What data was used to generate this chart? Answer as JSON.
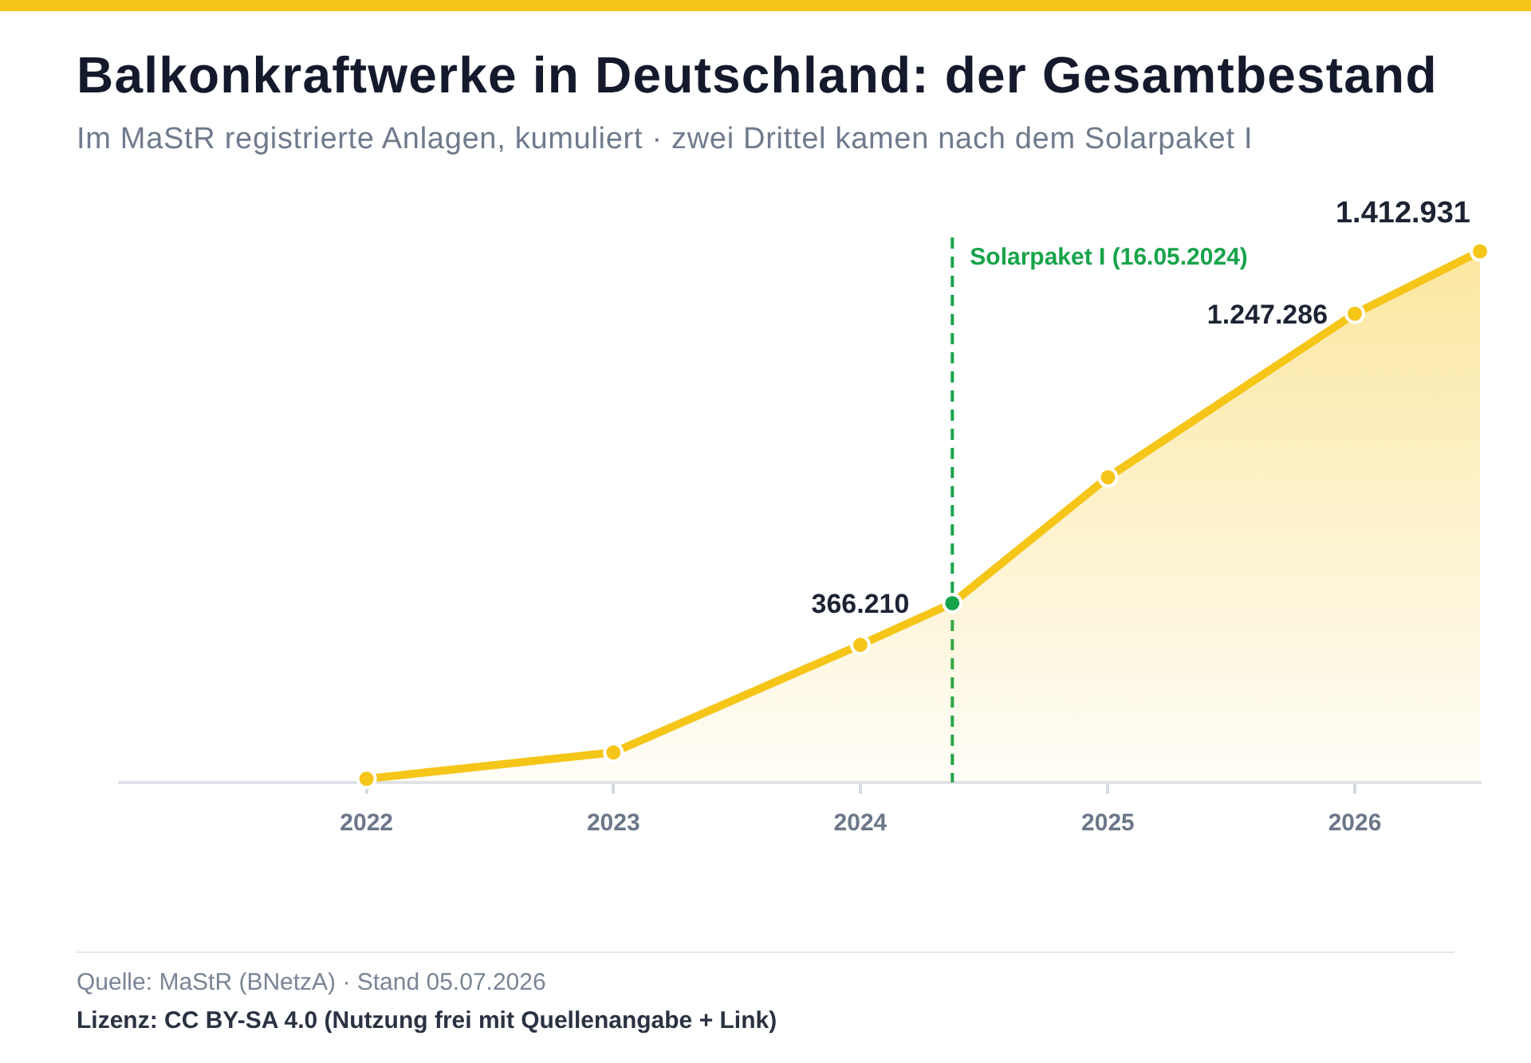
{
  "chart_data": {
    "type": "area",
    "title": "Balkonkraftwerke in Deutschland: der Gesamtbestand",
    "subtitle": "Im MaStR registrierte Anlagen, kumuliert · zwei Drittel kamen nach dem Solarpaket I",
    "x": [
      "2022-01-01",
      "2023-01-01",
      "2024-01-01",
      "2024-05-16",
      "2025-01-01",
      "2026-01-01",
      "2026-07-05"
    ],
    "series": [
      {
        "color": "#f5c518",
        "colors": [
          "#f5c518",
          "#f5c518",
          "#f5c518",
          "#17a34a",
          "#f5c518",
          "#f5c518",
          "#f5c518"
        ],
        "values": [
          10000,
          80000,
          366210,
          477000,
          812000,
          1247286,
          1412931
        ],
        "value_labels": [
          null,
          null,
          "366.210",
          null,
          null,
          "1.247.286",
          "1.412.931"
        ]
      }
    ],
    "xlim": [
      "2021-01-01",
      "2026-07-05"
    ],
    "xticks": [
      "2022",
      "2023",
      "2024",
      "2025",
      "2026"
    ],
    "ylim": [
      0,
      1450000
    ],
    "tick_labels": "x",
    "grid": false,
    "legend": false,
    "marker": "circle",
    "line_style": "solid",
    "ref_lines": [
      {
        "axis": "x",
        "value": "2024-05-16",
        "label": "Solarpaket I (16.05.2024)",
        "color": "#17a34a",
        "line_style": "dashed"
      }
    ],
    "annotations": [
      "Quelle: MaStR (BNetzA) · Stand 05.07.2026",
      "Lizenz: CC BY-SA 4.0 (Nutzung frei mit Quellenangabe + Link)"
    ]
  }
}
